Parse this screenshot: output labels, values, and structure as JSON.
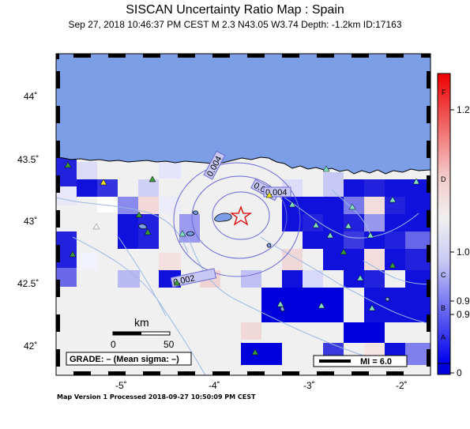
{
  "header": {
    "title": "SISCAN Uncertainty Ratio Map : Spain",
    "subtitle": "Sep 27, 2018 10:46:37 PM CEST   M 2.3   N43.05 W3.74   Depth: -1.2km   ID:17163"
  },
  "map": {
    "lat_labels": [
      "44˚",
      "43.5˚",
      "43˚",
      "42.5˚",
      "42˚"
    ],
    "lon_labels": [
      "-5˚",
      "-4˚",
      "-3˚",
      "-2˚"
    ],
    "contour_labels": [
      "0.004",
      "0.004",
      "0.002",
      "0.006"
    ],
    "scale": {
      "title": "km",
      "ticks": [
        "0",
        "50"
      ]
    },
    "grade_text": "GRADE: – (Mean sigma: –)",
    "mi_legend": "MI = 6.0",
    "colors": {
      "ocean": "#7b9ee6",
      "land": "#f0f0f0",
      "blue": "#0000dd",
      "epicenter": "#dd0000"
    }
  },
  "colorbar": {
    "letters": [
      "F",
      "D",
      "C",
      "B",
      "A"
    ],
    "values": [
      "1.2",
      "1.0",
      "0.9",
      "0.9",
      "0"
    ]
  },
  "footer": {
    "text": "Map Version 1 Processed 2018-09-27 10:50:09 PM CEST"
  }
}
